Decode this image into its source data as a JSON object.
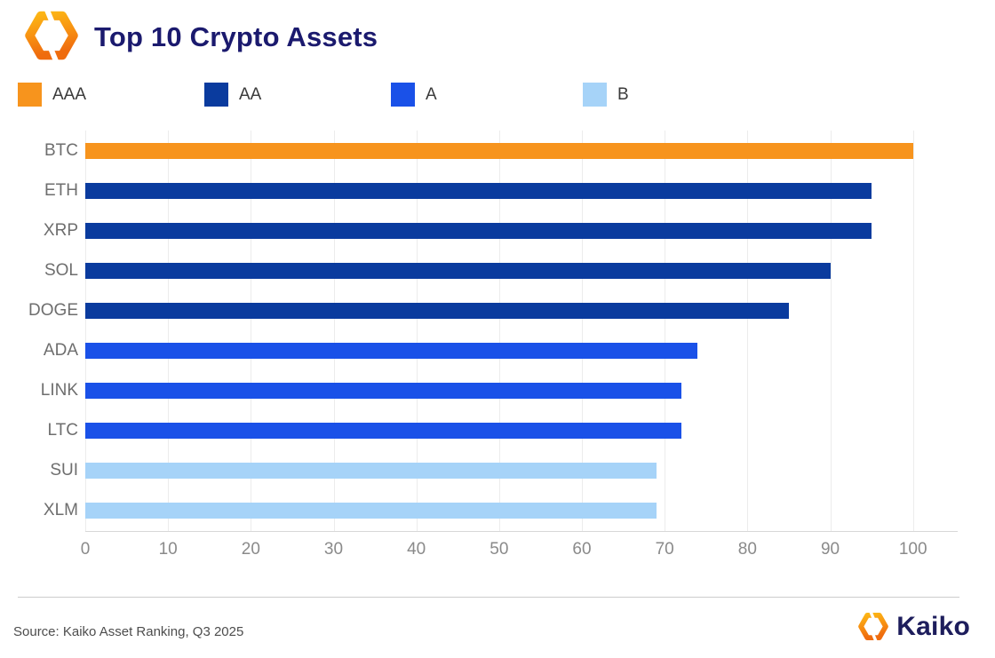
{
  "header": {
    "title": "Top 10 Crypto Assets"
  },
  "legend": {
    "items": [
      {
        "label": "AAA",
        "color": "#F7941D"
      },
      {
        "label": "AA",
        "color": "#0A3B9E"
      },
      {
        "label": "A",
        "color": "#1A51E8"
      },
      {
        "label": "B",
        "color": "#A6D3F8"
      }
    ]
  },
  "chart_data": {
    "type": "bar",
    "orientation": "horizontal",
    "title": "Top 10 Crypto Assets",
    "categories": [
      "BTC",
      "ETH",
      "XRP",
      "SOL",
      "DOGE",
      "ADA",
      "LINK",
      "LTC",
      "SUI",
      "XLM"
    ],
    "values": [
      100,
      95,
      95,
      90,
      85,
      74,
      72,
      72,
      69,
      69
    ],
    "ratings": [
      "AAA",
      "AA",
      "AA",
      "AA",
      "AA",
      "A",
      "A",
      "A",
      "B",
      "B"
    ],
    "rating_colors": {
      "AAA": "#F7941D",
      "AA": "#0A3B9E",
      "A": "#1A51E8",
      "B": "#A6D3F8"
    },
    "x_ticks": [
      0,
      10,
      20,
      30,
      40,
      50,
      60,
      70,
      80,
      90,
      100
    ],
    "xlim": [
      0,
      105.4
    ],
    "grid": "vertical",
    "legend_position": "top",
    "xlabel": "",
    "ylabel": ""
  },
  "footer": {
    "source": "Source: Kaiko Asset Ranking, Q3 2025",
    "brand_name": "Kaiko"
  },
  "colors": {
    "title_navy": "#1B1A6E",
    "brand_navy": "#1D1D5C",
    "logo_orange_top": "#FCB515",
    "logo_orange_bottom": "#EF6C0E"
  }
}
